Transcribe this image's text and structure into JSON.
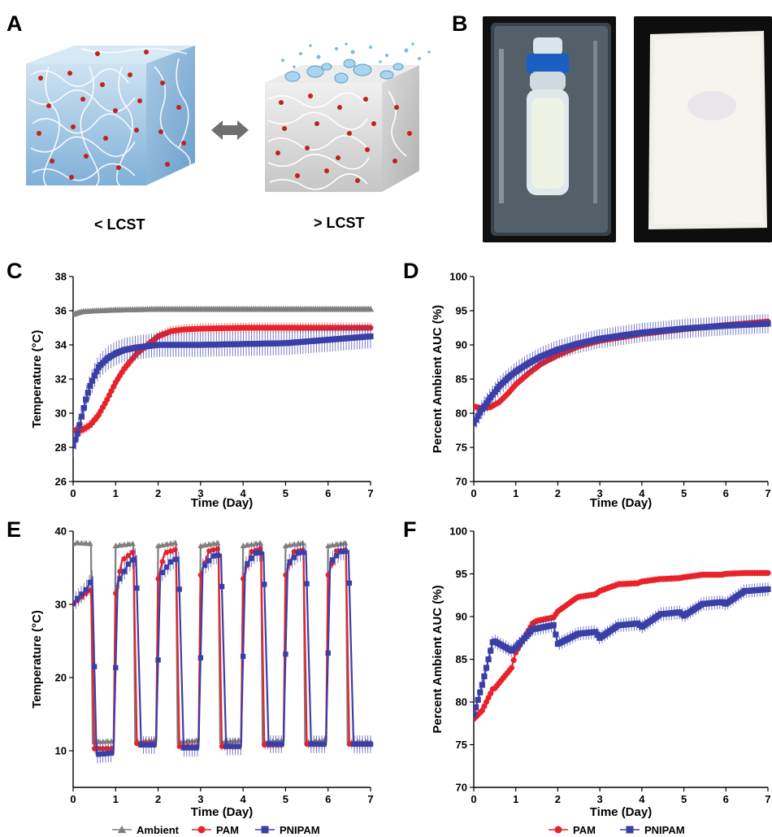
{
  "panels": {
    "a": {
      "letter": "A",
      "below_lcst": "< LCST",
      "above_lcst": "> LCST"
    },
    "b": {
      "letter": "B"
    },
    "c": {
      "letter": "C"
    },
    "d": {
      "letter": "D"
    },
    "e": {
      "letter": "E"
    },
    "f": {
      "letter": "F"
    }
  },
  "colors": {
    "ambient": "#7f7f7f",
    "pam": "#e8222b",
    "pnipam": "#3a3fa8"
  },
  "chart_data": [
    {
      "id": "C",
      "type": "line",
      "xlabel": "Time (Day)",
      "ylabel": "Temperature (°C)",
      "xlim": [
        0,
        7
      ],
      "ylim": [
        26,
        38
      ],
      "xticks": [
        0,
        1,
        2,
        3,
        4,
        5,
        6,
        7
      ],
      "yticks": [
        26,
        28,
        30,
        32,
        34,
        36,
        38
      ],
      "legend": [
        "Ambient",
        "PAM",
        "PNIPAM"
      ],
      "series": [
        {
          "name": "Ambient",
          "marker": "triangle",
          "color": "#7f7f7f",
          "err": 0.1,
          "x": [
            0,
            0.2,
            0.5,
            1,
            2,
            3,
            4,
            5,
            6,
            7
          ],
          "y": [
            35.8,
            35.95,
            36.0,
            36.05,
            36.1,
            36.1,
            36.1,
            36.1,
            36.1,
            36.1
          ]
        },
        {
          "name": "PAM",
          "marker": "circle",
          "color": "#e8222b",
          "err": 0.3,
          "x": [
            0,
            0.2,
            0.4,
            0.6,
            0.8,
            1.0,
            1.2,
            1.5,
            1.8,
            2.0,
            2.3,
            2.6,
            3,
            4,
            5,
            6,
            7
          ],
          "y": [
            29.0,
            29.0,
            29.3,
            29.9,
            30.8,
            31.8,
            32.6,
            33.5,
            34.1,
            34.5,
            34.8,
            34.9,
            34.95,
            35.0,
            35.0,
            35.0,
            35.0
          ]
        },
        {
          "name": "PNIPAM",
          "marker": "square",
          "color": "#3a3fa8",
          "err": 0.7,
          "x": [
            0,
            0.1,
            0.2,
            0.3,
            0.4,
            0.5,
            0.6,
            0.8,
            1.0,
            1.2,
            1.5,
            2.0,
            3,
            4,
            5,
            6,
            7
          ],
          "y": [
            28.1,
            28.8,
            29.8,
            30.8,
            31.6,
            32.2,
            32.7,
            33.2,
            33.5,
            33.7,
            33.85,
            34.0,
            34.0,
            34.05,
            34.1,
            34.3,
            34.5
          ]
        }
      ]
    },
    {
      "id": "D",
      "type": "line",
      "xlabel": "Time (Day)",
      "ylabel": "Percent Ambient AUC (%)",
      "xlim": [
        0,
        7
      ],
      "ylim": [
        70,
        100
      ],
      "xticks": [
        0,
        1,
        2,
        3,
        4,
        5,
        6,
        7
      ],
      "yticks": [
        70,
        75,
        80,
        85,
        90,
        95,
        100
      ],
      "legend": [
        "PAM",
        "PNIPAM"
      ],
      "series": [
        {
          "name": "PAM",
          "marker": "circle",
          "color": "#e8222b",
          "err": 0.5,
          "x": [
            0,
            0.2,
            0.4,
            0.6,
            0.8,
            1.0,
            1.3,
            1.6,
            2.0,
            2.5,
            3,
            4,
            5,
            6,
            7
          ],
          "y": [
            81.0,
            80.7,
            80.9,
            81.6,
            82.8,
            84.2,
            85.8,
            87.2,
            88.5,
            89.8,
            90.6,
            91.6,
            92.3,
            92.9,
            93.4
          ]
        },
        {
          "name": "PNIPAM",
          "marker": "square",
          "color": "#3a3fa8",
          "err": 1.4,
          "x": [
            0,
            0.1,
            0.2,
            0.4,
            0.6,
            0.8,
            1.0,
            1.3,
            1.6,
            2.0,
            2.5,
            3,
            4,
            5,
            6,
            7
          ],
          "y": [
            78.5,
            79.6,
            80.6,
            82.3,
            83.9,
            85.1,
            86.1,
            87.3,
            88.3,
            89.3,
            90.2,
            90.9,
            91.8,
            92.4,
            92.8,
            93.1
          ]
        }
      ]
    },
    {
      "id": "E",
      "type": "line",
      "xlabel": "Time (Day)",
      "ylabel": "Temperature (°C)",
      "xlim": [
        0,
        7
      ],
      "ylim": [
        5,
        40
      ],
      "xticks": [
        0,
        1,
        2,
        3,
        4,
        5,
        6,
        7
      ],
      "yticks": [
        10,
        20,
        30,
        40
      ],
      "legend": [
        "Ambient",
        "PAM",
        "PNIPAM"
      ],
      "series": [
        {
          "name": "Ambient",
          "marker": "triangle",
          "color": "#7f7f7f",
          "err": 0.4,
          "x": [
            0,
            0.08,
            0.42,
            0.46,
            0.96,
            1.0,
            1.42,
            1.46,
            1.96,
            2.0,
            2.42,
            2.46,
            2.96,
            3.0,
            3.42,
            3.46,
            3.96,
            4.0,
            4.42,
            4.46,
            4.96,
            5.0,
            5.42,
            5.46,
            5.96,
            6.0,
            6.42,
            6.46,
            7.0
          ],
          "y": [
            38.3,
            38.4,
            38.3,
            11.2,
            11.3,
            38.0,
            38.3,
            11.2,
            11.4,
            38.0,
            38.4,
            11.2,
            11.4,
            38.0,
            38.4,
            11.2,
            11.4,
            38.0,
            38.4,
            11.2,
            11.4,
            38.0,
            38.4,
            11.2,
            11.4,
            38.0,
            38.4,
            11.2,
            11.2
          ]
        },
        {
          "name": "PAM",
          "marker": "circle",
          "color": "#e8222b",
          "err": 0.6,
          "x": [
            0,
            0.3,
            0.42,
            0.5,
            0.95,
            1.0,
            1.15,
            1.42,
            1.5,
            1.95,
            2.0,
            2.15,
            2.42,
            2.5,
            2.95,
            3.0,
            3.2,
            3.42,
            3.5,
            3.95,
            4.0,
            4.2,
            4.42,
            4.5,
            4.95,
            5.0,
            5.2,
            5.42,
            5.5,
            5.95,
            6.0,
            6.2,
            6.42,
            6.5,
            7.0
          ],
          "y": [
            30.0,
            31.5,
            32.0,
            10.3,
            10.3,
            31.5,
            36.0,
            37.2,
            11.0,
            11.0,
            33.5,
            37.0,
            37.5,
            10.6,
            10.6,
            34.0,
            37.3,
            37.6,
            10.6,
            10.6,
            33.5,
            37.2,
            37.6,
            10.8,
            10.8,
            34.0,
            37.2,
            37.4,
            10.9,
            10.9,
            34.0,
            37.3,
            37.4,
            10.9,
            10.9
          ]
        },
        {
          "name": "PNIPAM",
          "marker": "square",
          "color": "#3a3fa8",
          "err": 1.2,
          "x": [
            0,
            0.3,
            0.45,
            0.55,
            0.95,
            1.05,
            1.3,
            1.48,
            1.6,
            1.95,
            2.05,
            2.3,
            2.48,
            2.6,
            2.95,
            3.05,
            3.3,
            3.48,
            3.6,
            3.95,
            4.05,
            4.3,
            4.48,
            4.6,
            4.95,
            5.05,
            5.3,
            5.48,
            5.6,
            5.95,
            6.05,
            6.3,
            6.48,
            6.6,
            7.0
          ],
          "y": [
            30.2,
            32.0,
            33.5,
            9.5,
            9.7,
            33.0,
            35.5,
            36.5,
            10.8,
            10.8,
            34.0,
            35.8,
            36.4,
            10.4,
            10.4,
            35.0,
            36.6,
            36.8,
            10.6,
            10.6,
            35.2,
            37.0,
            37.1,
            10.9,
            10.9,
            35.5,
            37.0,
            37.2,
            10.9,
            10.9,
            35.8,
            37.2,
            37.3,
            10.9,
            10.9
          ]
        }
      ]
    },
    {
      "id": "F",
      "type": "line",
      "xlabel": "Time (Day)",
      "ylabel": "Percent Ambient AUC (%)",
      "xlim": [
        0,
        7
      ],
      "ylim": [
        70,
        100
      ],
      "xticks": [
        0,
        1,
        2,
        3,
        4,
        5,
        6,
        7
      ],
      "yticks": [
        70,
        75,
        80,
        85,
        90,
        95,
        100
      ],
      "legend": [
        "PAM",
        "PNIPAM"
      ],
      "series": [
        {
          "name": "PAM",
          "marker": "circle",
          "color": "#e8222b",
          "err": 0.4,
          "x": [
            0,
            0.2,
            0.45,
            0.5,
            0.9,
            1.0,
            1.4,
            1.5,
            1.9,
            2.0,
            2.45,
            2.5,
            2.9,
            3.0,
            3.45,
            3.5,
            3.9,
            4.0,
            4.45,
            4.5,
            4.9,
            5.0,
            5.45,
            5.5,
            5.9,
            6.0,
            6.45,
            6.5,
            7.0
          ],
          "y": [
            78.0,
            79.0,
            81.5,
            81.6,
            84.0,
            85.8,
            89.2,
            89.5,
            89.9,
            90.6,
            92.2,
            92.3,
            92.6,
            93.0,
            93.8,
            93.8,
            93.9,
            94.1,
            94.4,
            94.4,
            94.5,
            94.6,
            94.9,
            94.9,
            94.9,
            95.0,
            95.1,
            95.1,
            95.1
          ]
        },
        {
          "name": "PNIPAM",
          "marker": "square",
          "color": "#3a3fa8",
          "err": 0.8,
          "x": [
            0,
            0.2,
            0.45,
            0.5,
            0.9,
            1.0,
            1.4,
            1.5,
            1.9,
            2.0,
            2.45,
            2.5,
            2.9,
            3.0,
            3.45,
            3.5,
            3.9,
            4.0,
            4.45,
            4.5,
            4.9,
            5.0,
            5.45,
            5.5,
            5.9,
            6.0,
            6.45,
            6.5,
            7.0
          ],
          "y": [
            78.5,
            82.0,
            87.0,
            87.1,
            86.0,
            86.4,
            88.5,
            88.6,
            89.0,
            86.8,
            87.9,
            88.0,
            88.2,
            87.5,
            89.0,
            89.0,
            89.2,
            88.8,
            90.3,
            90.3,
            90.5,
            90.1,
            91.5,
            91.5,
            91.7,
            91.5,
            93.0,
            93.0,
            93.2
          ]
        }
      ]
    }
  ]
}
